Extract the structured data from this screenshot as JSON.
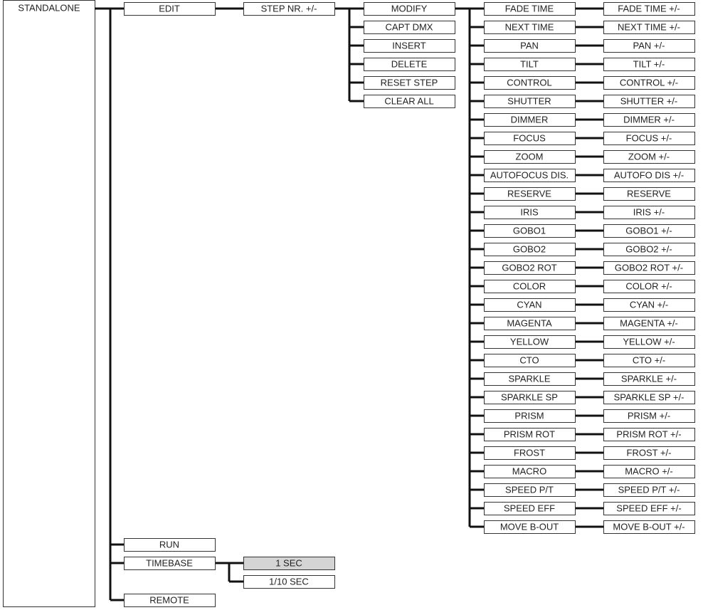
{
  "root": "STANDALONE",
  "level1": [
    "EDIT",
    "RUN",
    "TIMEBASE",
    "REMOTE"
  ],
  "step": "STEP NR. +/-",
  "edit_options": [
    "MODIFY",
    "CAPT DMX",
    "INSERT",
    "DELETE",
    "RESET STEP",
    "CLEAR ALL"
  ],
  "parameters": [
    {
      "name": "FADE TIME",
      "adjust": "FADE TIME +/-"
    },
    {
      "name": "NEXT TIME",
      "adjust": "NEXT TIME +/-"
    },
    {
      "name": "PAN",
      "adjust": "PAN +/-"
    },
    {
      "name": "TILT",
      "adjust": "TILT +/-"
    },
    {
      "name": "CONTROL",
      "adjust": "CONTROL +/-"
    },
    {
      "name": "SHUTTER",
      "adjust": "SHUTTER +/-"
    },
    {
      "name": "DIMMER",
      "adjust": "DIMMER +/-"
    },
    {
      "name": "FOCUS",
      "adjust": "FOCUS +/-"
    },
    {
      "name": "ZOOM",
      "adjust": "ZOOM +/-"
    },
    {
      "name": "AUTOFOCUS DIS.",
      "adjust": "AUTOFO DIS +/-"
    },
    {
      "name": "RESERVE",
      "adjust": "RESERVE"
    },
    {
      "name": "IRIS",
      "adjust": "IRIS +/-"
    },
    {
      "name": "GOBO1",
      "adjust": "GOBO1 +/-"
    },
    {
      "name": "GOBO2",
      "adjust": "GOBO2 +/-"
    },
    {
      "name": "GOBO2 ROT",
      "adjust": "GOBO2 ROT +/-"
    },
    {
      "name": "COLOR",
      "adjust": "COLOR +/-"
    },
    {
      "name": "CYAN",
      "adjust": "CYAN +/-"
    },
    {
      "name": "MAGENTA",
      "adjust": "MAGENTA +/-"
    },
    {
      "name": "YELLOW",
      "adjust": "YELLOW +/-"
    },
    {
      "name": "CTO",
      "adjust": "CTO +/-"
    },
    {
      "name": "SPARKLE",
      "adjust": "SPARKLE +/-"
    },
    {
      "name": "SPARKLE SP",
      "adjust": "SPARKLE SP +/-"
    },
    {
      "name": "PRISM",
      "adjust": "PRISM +/-"
    },
    {
      "name": "PRISM ROT",
      "adjust": "PRISM ROT +/-"
    },
    {
      "name": "FROST",
      "adjust": "FROST +/-"
    },
    {
      "name": "MACRO",
      "adjust": "MACRO +/-"
    },
    {
      "name": "SPEED P/T",
      "adjust": "SPEED P/T +/-"
    },
    {
      "name": "SPEED EFF",
      "adjust": "SPEED EFF +/-"
    },
    {
      "name": "MOVE B-OUT",
      "adjust": "MOVE B-OUT +/-"
    }
  ],
  "timebase_options": [
    "1 SEC",
    "1/10 SEC"
  ]
}
